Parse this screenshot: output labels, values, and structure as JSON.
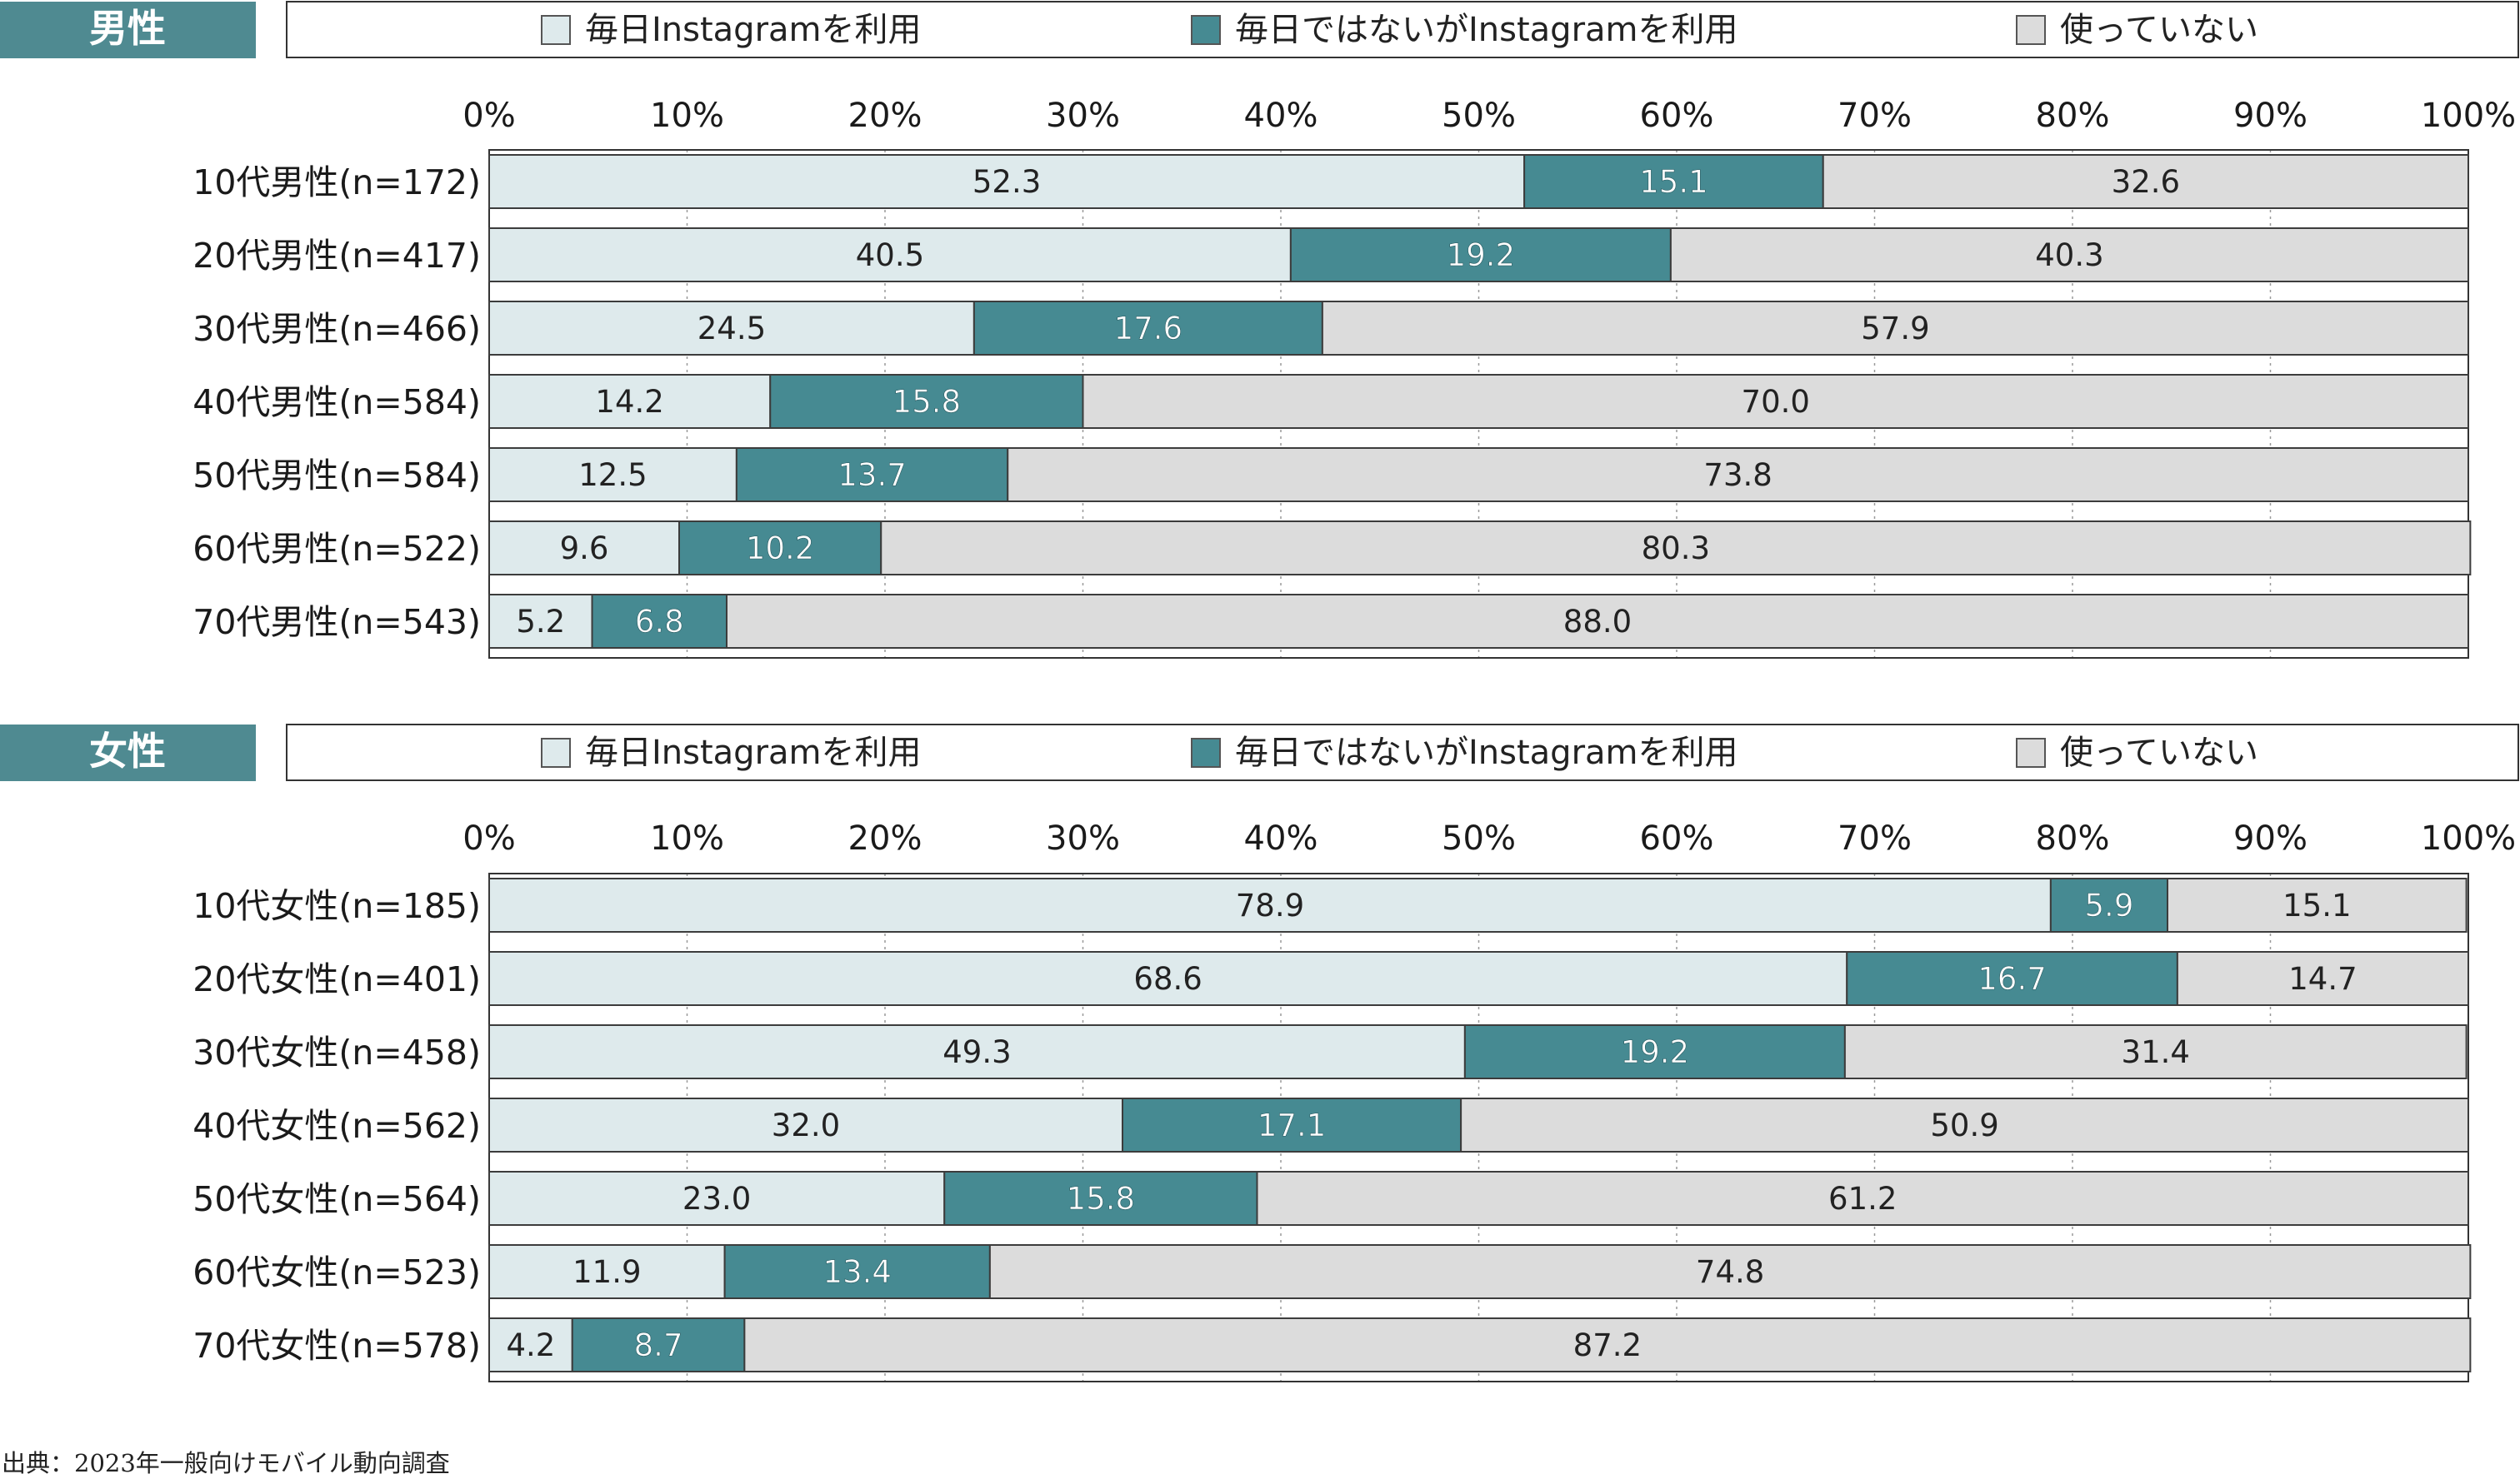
{
  "colors": {
    "daily": "#deeaec",
    "not_daily": "#468a92",
    "none": "#dcdcdc",
    "badge": "#4f8a91",
    "border": "#555555",
    "grid": "#9a9a9a"
  },
  "source_note": "出典：2023年一般向けモバイル動向調査",
  "chart_data": [
    {
      "type": "bar",
      "orientation": "horizontal",
      "stacked": true,
      "panel_label": "男性",
      "xlim": [
        0,
        100
      ],
      "ticks": [
        "0%",
        "10%",
        "20%",
        "30%",
        "40%",
        "50%",
        "60%",
        "70%",
        "80%",
        "90%",
        "100%"
      ],
      "grid": true,
      "legend_position": "top",
      "categories": [
        "10代男性(n=172)",
        "20代男性(n=417)",
        "30代男性(n=466)",
        "40代男性(n=584)",
        "50代男性(n=584)",
        "60代男性(n=522)",
        "70代男性(n=543)"
      ],
      "series": [
        {
          "name": "毎日Instagramを利用",
          "color_key": "daily",
          "values": [
            52.3,
            40.5,
            24.5,
            14.2,
            12.5,
            9.6,
            5.2
          ],
          "labels": [
            "52.3",
            "40.5",
            "24.5",
            "14.2",
            "12.5",
            "9.6",
            "5.2"
          ]
        },
        {
          "name": "毎日ではないがInstagramを利用",
          "color_key": "not_daily",
          "values": [
            15.1,
            19.2,
            17.6,
            15.8,
            13.7,
            10.2,
            6.8
          ],
          "labels": [
            "15.1",
            "19.2",
            "17.6",
            "15.8",
            "13.7",
            "10.2",
            "6.8"
          ]
        },
        {
          "name": "使っていない",
          "color_key": "none",
          "values": [
            32.6,
            40.3,
            57.9,
            70.0,
            73.8,
            80.3,
            88.0
          ],
          "labels": [
            "32.6",
            "40.3",
            "57.9",
            "70.0",
            "73.8",
            "80.3",
            "88.0"
          ]
        }
      ]
    },
    {
      "type": "bar",
      "orientation": "horizontal",
      "stacked": true,
      "panel_label": "女性",
      "xlim": [
        0,
        100
      ],
      "ticks": [
        "0%",
        "10%",
        "20%",
        "30%",
        "40%",
        "50%",
        "60%",
        "70%",
        "80%",
        "90%",
        "100%"
      ],
      "grid": true,
      "legend_position": "top",
      "categories": [
        "10代女性(n=185)",
        "20代女性(n=401)",
        "30代女性(n=458)",
        "40代女性(n=562)",
        "50代女性(n=564)",
        "60代女性(n=523)",
        "70代女性(n=578)"
      ],
      "series": [
        {
          "name": "毎日Instagramを利用",
          "color_key": "daily",
          "values": [
            78.9,
            68.6,
            49.3,
            32.0,
            23.0,
            11.9,
            4.2
          ],
          "labels": [
            "78.9",
            "68.6",
            "49.3",
            "32.0",
            "23.0",
            "11.9",
            "4.2"
          ]
        },
        {
          "name": "毎日ではないがInstagramを利用",
          "color_key": "not_daily",
          "values": [
            5.9,
            16.7,
            19.2,
            17.1,
            15.8,
            13.4,
            8.7
          ],
          "labels": [
            "5.9",
            "16.7",
            "19.2",
            "17.1",
            "15.8",
            "13.4",
            "8.7"
          ]
        },
        {
          "name": "使っていない",
          "color_key": "none",
          "values": [
            15.1,
            14.7,
            31.4,
            50.9,
            61.2,
            74.8,
            87.2
          ],
          "labels": [
            "15.1",
            "14.7",
            "31.4",
            "50.9",
            "61.2",
            "74.8",
            "87.2"
          ]
        }
      ]
    }
  ]
}
